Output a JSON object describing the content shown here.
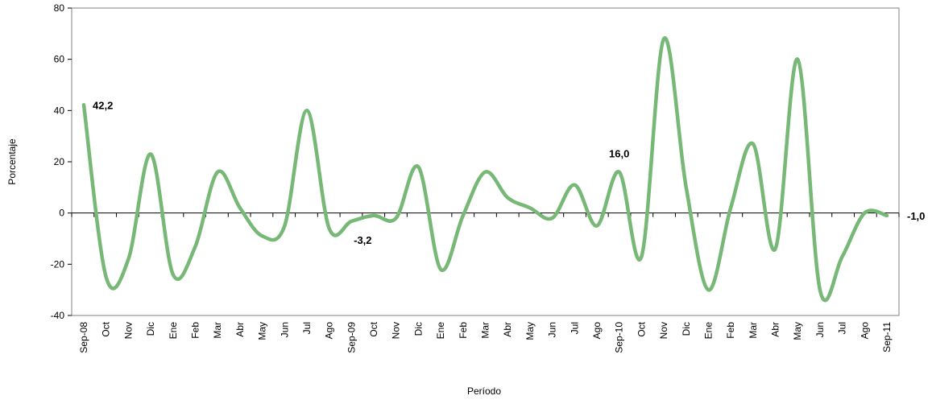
{
  "chart_data": {
    "type": "line",
    "title": "",
    "xlabel": "Período",
    "ylabel": "Porcentaje",
    "ylim": [
      -40,
      80
    ],
    "yticks": [
      -40,
      -20,
      0,
      20,
      40,
      60,
      80
    ],
    "grid": false,
    "categories": [
      "Sep-08",
      "Oct",
      "Nov",
      "Dic",
      "Ene",
      "Feb",
      "Mar",
      "Abr",
      "May",
      "Jun",
      "Jul",
      "Ago",
      "Sep-09",
      "Oct",
      "Nov",
      "Dic",
      "Ene",
      "Feb",
      "Mar",
      "Abr",
      "May",
      "Jun",
      "Jul",
      "Ago",
      "Sep-10",
      "Oct",
      "Nov",
      "Dic",
      "Ene",
      "Feb",
      "Mar",
      "Abr",
      "May",
      "Jun",
      "Jul",
      "Ago",
      "Sep-11"
    ],
    "series": [
      {
        "name": "",
        "color": "#77b877",
        "values": [
          42.2,
          -25,
          -18,
          23,
          -24,
          -13,
          16,
          2,
          -9,
          -5,
          40,
          -6,
          -3.2,
          -1,
          -2,
          18,
          -22,
          -1,
          16,
          6,
          2,
          -2,
          11,
          -5,
          16.0,
          -17,
          68,
          10,
          -30,
          2,
          27,
          -14,
          60,
          -30,
          -17,
          0,
          -1.0
        ]
      }
    ],
    "annotations": [
      {
        "index": 0,
        "text": "42,2",
        "pos": "right"
      },
      {
        "index": 12,
        "text": "-3,2",
        "pos": "below"
      },
      {
        "index": 24,
        "text": "16,0",
        "pos": "above"
      },
      {
        "index": 36,
        "text": "-1,0",
        "pos": "far-right"
      }
    ]
  }
}
